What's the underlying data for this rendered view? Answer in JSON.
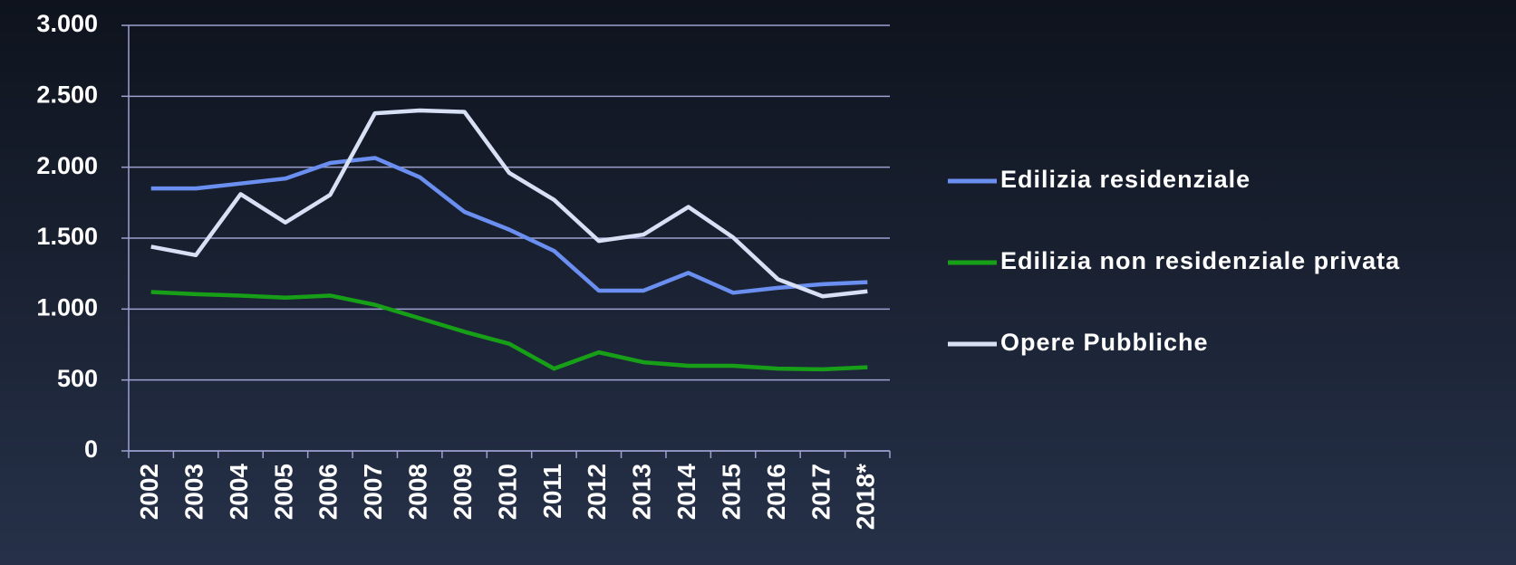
{
  "chart_data": {
    "type": "line",
    "categories": [
      "2002",
      "2003",
      "2004",
      "2005",
      "2006",
      "2007",
      "2008",
      "2009",
      "2010",
      "2011",
      "2012",
      "2013",
      "2014",
      "2015",
      "2016",
      "2017",
      "2018*"
    ],
    "series": [
      {
        "name": "Edilizia residenziale",
        "color": "#6a8ff0",
        "values": [
          1850,
          1850,
          1885,
          1920,
          2030,
          2065,
          1930,
          1685,
          1560,
          1410,
          1130,
          1130,
          1255,
          1115,
          1150,
          1175,
          1190
        ]
      },
      {
        "name": "Edilizia non residenziale  privata",
        "color": "#17a017",
        "values": [
          1120,
          1105,
          1095,
          1080,
          1095,
          1030,
          935,
          840,
          755,
          580,
          695,
          625,
          600,
          600,
          580,
          575,
          590
        ]
      },
      {
        "name": "Opere Pubbliche",
        "color": "#d8e0f5",
        "values": [
          1440,
          1380,
          1810,
          1610,
          1805,
          2380,
          2400,
          2390,
          1960,
          1770,
          1480,
          1525,
          1720,
          1505,
          1210,
          1090,
          1125
        ]
      }
    ],
    "ylim": [
      0,
      3000
    ],
    "yticks": [
      0,
      500,
      {
        "value": 1000,
        "label": "1.000"
      },
      {
        "value": 1500,
        "label": "1.500"
      },
      {
        "value": 2000,
        "label": "2.000"
      },
      {
        "value": 2500,
        "label": "2.500"
      },
      {
        "value": 3000,
        "label": "3.000"
      }
    ],
    "grid": true,
    "legend": "right"
  }
}
